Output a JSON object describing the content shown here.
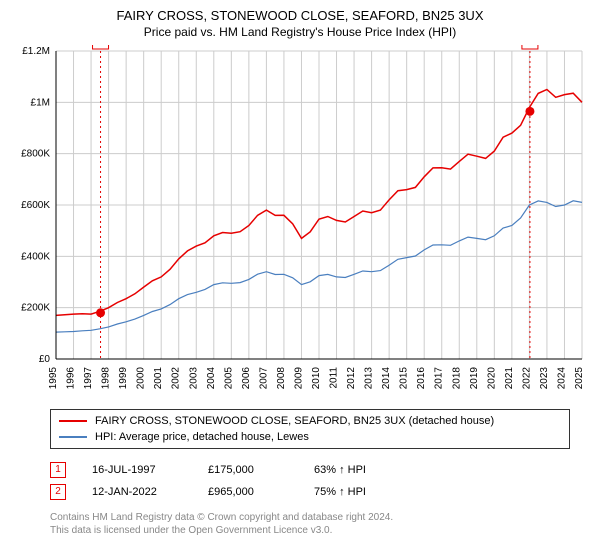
{
  "title_line1": "FAIRY CROSS, STONEWOOD CLOSE, SEAFORD, BN25 3UX",
  "title_line2": "Price paid vs. HM Land Registry's House Price Index (HPI)",
  "chart": {
    "type": "line",
    "background_color": "#ffffff",
    "grid_color": "#cccccc",
    "axis_color": "#000000",
    "tick_label_color": "#000000",
    "tick_label_fontsize": 10,
    "xtick_rotation": -90,
    "ylim": [
      0,
      1200000
    ],
    "ytick_step": 200000,
    "ytick_labels": [
      "£0",
      "£200K",
      "£400K",
      "£600K",
      "£800K",
      "£1M",
      "£1.2M"
    ],
    "xlim": [
      1995,
      2025
    ],
    "xtick_step": 1,
    "xtick_labels": [
      "1995",
      "1996",
      "1997",
      "1998",
      "1999",
      "2000",
      "2001",
      "2002",
      "2003",
      "2004",
      "2005",
      "2006",
      "2007",
      "2008",
      "2009",
      "2010",
      "2011",
      "2012",
      "2013",
      "2014",
      "2015",
      "2016",
      "2017",
      "2018",
      "2019",
      "2020",
      "2021",
      "2022",
      "2023",
      "2024",
      "2025"
    ],
    "series": [
      {
        "name": "price_paid",
        "label": "FAIRY CROSS, STONEWOOD CLOSE, SEAFORD, BN25 3UX (detached house)",
        "color": "#e60000",
        "line_width": 1.5,
        "x": [
          1995,
          1996,
          1997,
          1998,
          1999,
          2000,
          2001,
          2002,
          2003,
          2004,
          2005,
          2006,
          2007,
          2008,
          2009,
          2010,
          2011,
          2012,
          2013,
          2014,
          2015,
          2016,
          2017,
          2018,
          2019,
          2020,
          2021,
          2022,
          2023,
          2024,
          2025
        ],
        "y": [
          170000,
          175000,
          175000,
          200000,
          235000,
          280000,
          320000,
          390000,
          440000,
          480000,
          490000,
          520000,
          580000,
          560000,
          470000,
          545000,
          540000,
          555000,
          570000,
          620000,
          660000,
          710000,
          745000,
          770000,
          790000,
          810000,
          880000,
          980000,
          1050000,
          1030000,
          1000000
        ]
      },
      {
        "name": "hpi",
        "label": "HPI: Average price, detached house, Lewes",
        "color": "#4a7fbf",
        "line_width": 1.2,
        "x": [
          1995,
          1996,
          1997,
          1998,
          1999,
          2000,
          2001,
          2002,
          2003,
          2004,
          2005,
          2006,
          2007,
          2008,
          2009,
          2010,
          2011,
          2012,
          2013,
          2014,
          2015,
          2016,
          2017,
          2018,
          2019,
          2020,
          2021,
          2022,
          2023,
          2024,
          2025
        ],
        "y": [
          105000,
          107000,
          112000,
          125000,
          145000,
          170000,
          195000,
          235000,
          260000,
          290000,
          295000,
          310000,
          340000,
          330000,
          290000,
          325000,
          320000,
          330000,
          340000,
          365000,
          395000,
          425000,
          445000,
          460000,
          470000,
          480000,
          520000,
          600000,
          610000,
          600000,
          610000
        ]
      }
    ],
    "markers": [
      {
        "id": "1",
        "color": "#e60000",
        "year": 1997.54,
        "date": "16-JUL-1997",
        "price": "£175,000",
        "hpi_pct": "63% ↑ HPI",
        "y": 180000
      },
      {
        "id": "2",
        "color": "#e60000",
        "year": 2022.03,
        "date": "12-JAN-2022",
        "price": "£965,000",
        "hpi_pct": "75% ↑ HPI",
        "y": 965000
      }
    ]
  },
  "footer_line1": "Contains HM Land Registry data © Crown copyright and database right 2024.",
  "footer_line2": "This data is licensed under the Open Government Licence v3.0."
}
